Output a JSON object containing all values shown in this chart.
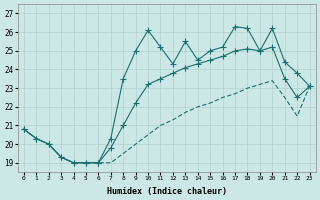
{
  "xlabel": "Humidex (Indice chaleur)",
  "bg_color": "#cce8e6",
  "line_color": "#1a7070",
  "grid_color": "#b0d0ce",
  "xlim": [
    -0.5,
    23.5
  ],
  "ylim": [
    18.5,
    27.5
  ],
  "xticks": [
    0,
    1,
    2,
    3,
    4,
    5,
    6,
    7,
    8,
    9,
    10,
    11,
    12,
    13,
    14,
    15,
    16,
    17,
    18,
    19,
    20,
    21,
    22,
    23
  ],
  "yticks": [
    19,
    20,
    21,
    22,
    23,
    24,
    25,
    26,
    27
  ],
  "line1_y": [
    20.8,
    20.3,
    20.0,
    19.3,
    19.0,
    19.0,
    19.0,
    20.3,
    23.5,
    25.0,
    26.1,
    25.2,
    24.3,
    25.5,
    24.5,
    25.0,
    25.2,
    26.3,
    26.2,
    25.0,
    26.2,
    24.4,
    23.8,
    23.1
  ],
  "line2_y": [
    20.8,
    20.3,
    20.0,
    19.3,
    19.0,
    19.0,
    19.0,
    19.8,
    21.0,
    22.2,
    23.2,
    23.5,
    23.8,
    24.1,
    24.3,
    24.5,
    24.7,
    25.0,
    25.1,
    25.0,
    25.2,
    23.5,
    22.5,
    23.1
  ],
  "line3_y": [
    20.8,
    20.3,
    20.0,
    19.3,
    19.0,
    19.0,
    19.0,
    19.0,
    19.5,
    20.0,
    20.5,
    21.0,
    21.3,
    21.7,
    22.0,
    22.2,
    22.5,
    22.7,
    23.0,
    23.2,
    23.4,
    22.5,
    21.5,
    23.1
  ]
}
